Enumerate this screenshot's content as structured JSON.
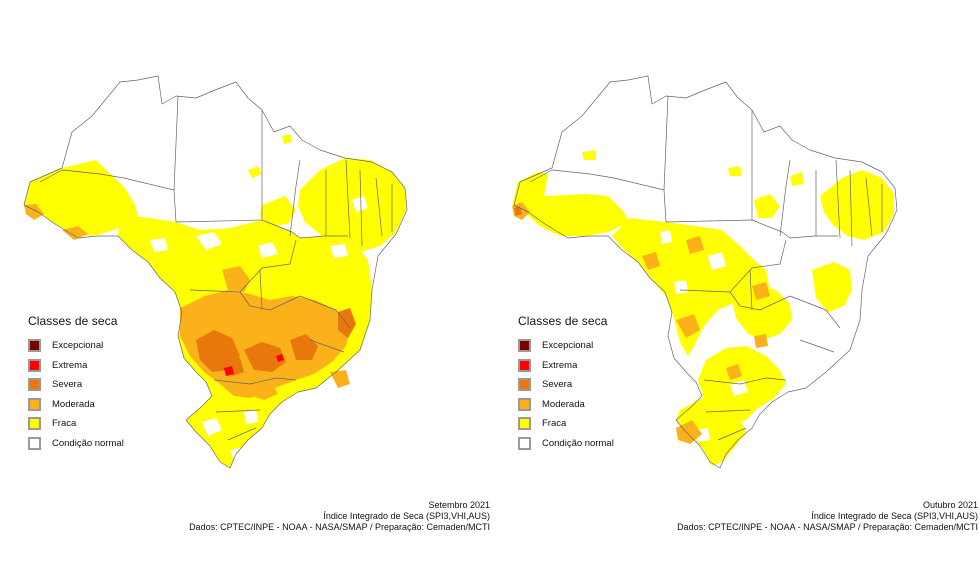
{
  "legend": {
    "title": "Classes de seca",
    "items": [
      {
        "label": "Excepcional",
        "color": "#7a0000"
      },
      {
        "label": "Extrema",
        "color": "#ff0000"
      },
      {
        "label": "Severa",
        "color": "#e8780c"
      },
      {
        "label": "Moderada",
        "color": "#fbb21a"
      },
      {
        "label": "Fraca",
        "color": "#ffff00"
      },
      {
        "label": "Condição normal",
        "color": "#ffffff"
      }
    ]
  },
  "maps": [
    {
      "period": "Setembro 2021",
      "index": "Índice Integrado de Seca (SPI3,VHI,AUS)",
      "source": "Dados: CPTEC/INPE - NOAA - NASA/SMAP / Preparação: Cemaden/MCTI"
    },
    {
      "period": "Outubro 2021",
      "index": "Índice Integrado de Seca (SPI3,VHI,AUS)",
      "source": "Dados: CPTEC/INPE - NOAA - NASA/SMAP / Preparação: Cemaden/MCTI"
    }
  ],
  "colors": {
    "border": "#666666",
    "fraca": "#ffff00",
    "moderada": "#fbb21a",
    "severa": "#e8780c",
    "extrema": "#ff0000"
  }
}
